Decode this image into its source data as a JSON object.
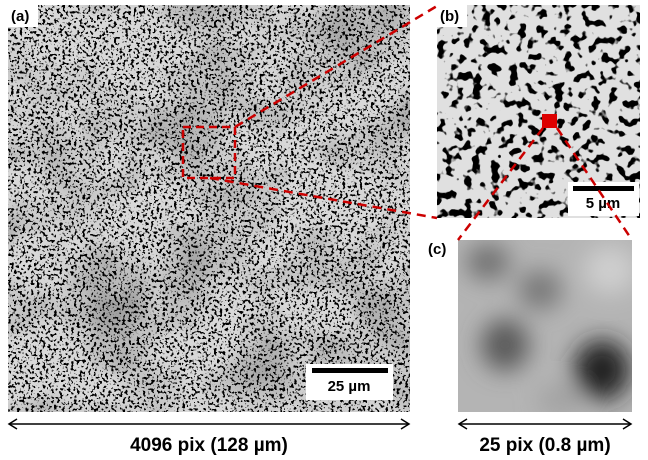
{
  "panels": {
    "a": {
      "label": "(a)",
      "scale_bar": "25 µm",
      "width_label": "4096 pix (128 µm)"
    },
    "b": {
      "label": "(b)",
      "scale_bar": "5 µm"
    },
    "c": {
      "label": "(c)",
      "width_label": "25 pix (0.8 µm)"
    }
  }
}
